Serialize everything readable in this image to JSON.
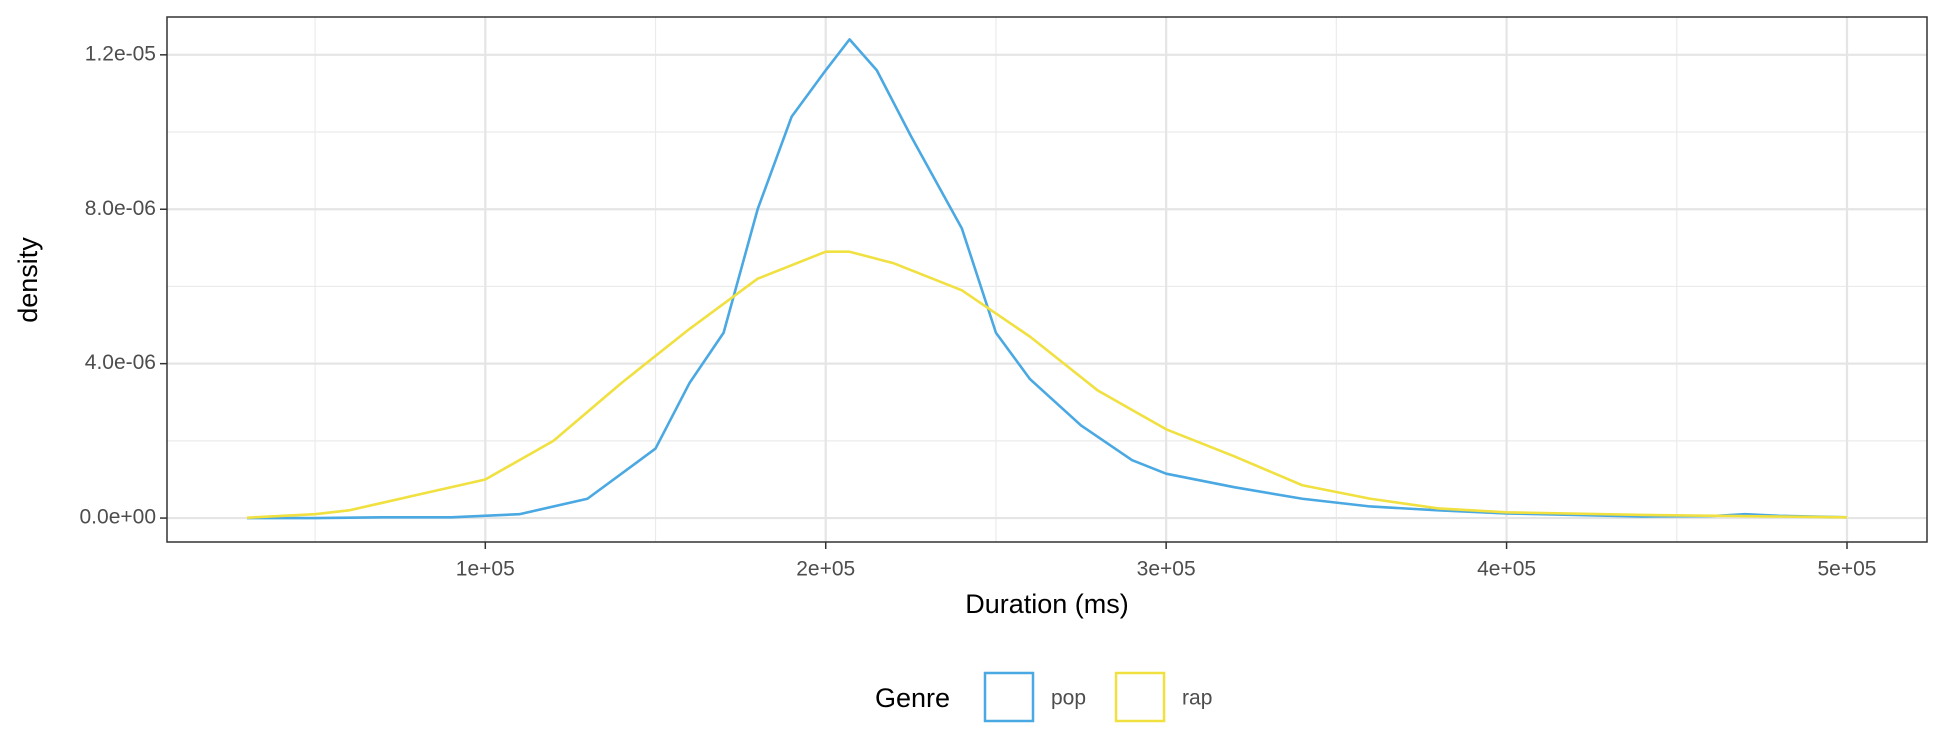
{
  "chart_data": {
    "type": "line",
    "x_label": "Duration (ms)",
    "y_label": "density",
    "legend_title": "Genre",
    "legend_position": "bottom",
    "grid": true,
    "xlim": [
      6500,
      523500
    ],
    "ylim": [
      -6.2e-07,
      1.298e-05
    ],
    "xticks": [
      {
        "value": 100000,
        "label": "1e+05"
      },
      {
        "value": 200000,
        "label": "2e+05"
      },
      {
        "value": 300000,
        "label": "3e+05"
      },
      {
        "value": 400000,
        "label": "4e+05"
      },
      {
        "value": 500000,
        "label": "5e+05"
      }
    ],
    "x_minor_grid": [
      50000,
      150000,
      250000,
      350000,
      450000
    ],
    "yticks": [
      {
        "value": 0,
        "label": "0.0e+00"
      },
      {
        "value": 4e-06,
        "label": "4.0e-06"
      },
      {
        "value": 8e-06,
        "label": "8.0e-06"
      },
      {
        "value": 1.2e-05,
        "label": "1.2e-05"
      }
    ],
    "y_minor_grid": [
      2e-06,
      6e-06,
      1e-05
    ],
    "series": [
      {
        "name": "pop",
        "color": "#4aa8e2",
        "x": [
          30000,
          50000,
          70000,
          90000,
          110000,
          130000,
          150000,
          160000,
          170000,
          180000,
          190000,
          200000,
          207000,
          215000,
          225000,
          240000,
          250000,
          260000,
          275000,
          290000,
          300000,
          320000,
          340000,
          360000,
          380000,
          400000,
          420000,
          440000,
          460000,
          470000,
          480000,
          500000
        ],
        "values": [
          0,
          0,
          2e-08,
          2e-08,
          1e-07,
          5e-07,
          1.8e-06,
          3.5e-06,
          4.8e-06,
          8e-06,
          1.04e-05,
          1.16e-05,
          1.24e-05,
          1.16e-05,
          9.9e-06,
          7.5e-06,
          4.8e-06,
          3.6e-06,
          2.4e-06,
          1.5e-06,
          1.15e-06,
          8e-07,
          5e-07,
          3e-07,
          2e-07,
          1.2e-07,
          8e-08,
          4e-08,
          5e-08,
          1e-07,
          6e-08,
          2e-08
        ]
      },
      {
        "name": "rap",
        "color": "#f0e040",
        "x": [
          30000,
          50000,
          60000,
          80000,
          100000,
          120000,
          140000,
          160000,
          180000,
          200000,
          207000,
          220000,
          240000,
          260000,
          280000,
          300000,
          320000,
          340000,
          360000,
          380000,
          400000,
          440000,
          500000
        ],
        "values": [
          1e-08,
          1e-07,
          2e-07,
          6e-07,
          1e-06,
          2e-06,
          3.5e-06,
          4.9e-06,
          6.2e-06,
          6.9e-06,
          6.9e-06,
          6.6e-06,
          5.9e-06,
          4.7e-06,
          3.3e-06,
          2.3e-06,
          1.6e-06,
          8.5e-07,
          5e-07,
          2.5e-07,
          1.5e-07,
          8e-08,
          2e-08
        ]
      }
    ]
  }
}
